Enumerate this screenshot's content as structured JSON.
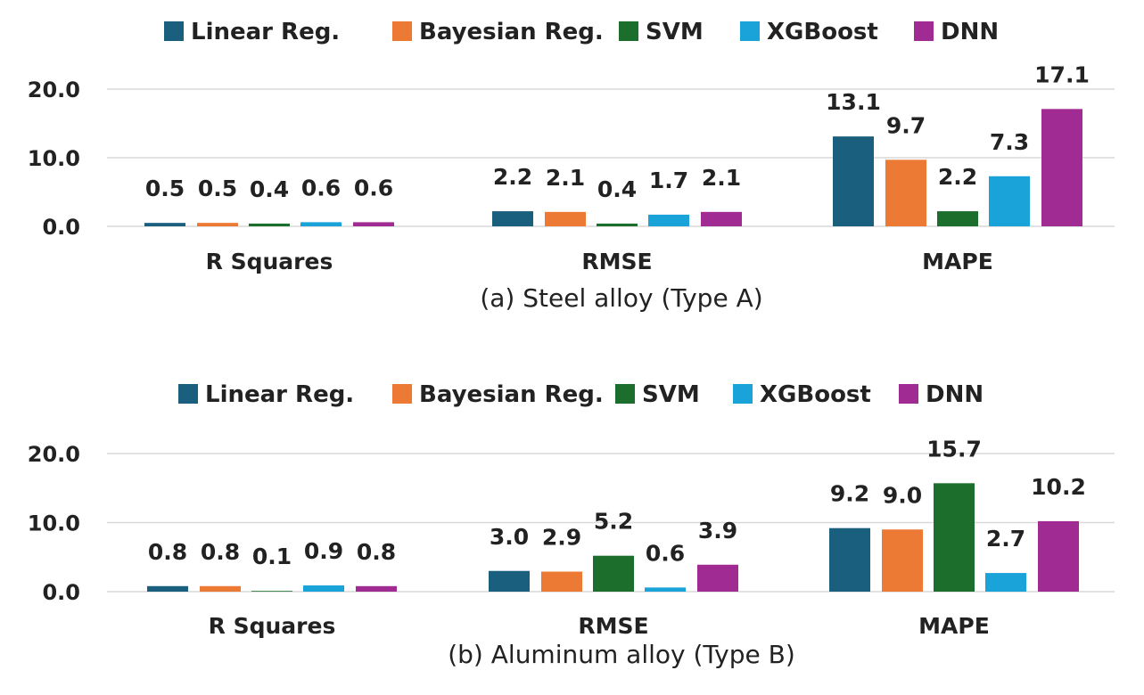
{
  "colors": {
    "Linear Reg.": "#1b5f7e",
    "Bayesian Reg.": "#ec7a35",
    "SVM": "#1c6e2c",
    "XGBoost": "#1aa3d9",
    "DNN": "#a02b93"
  },
  "chart_data": [
    {
      "type": "bar",
      "caption": "(a) Steel alloy (Type A)",
      "categories": [
        "R Squares",
        "RMSE",
        "MAPE"
      ],
      "series": [
        {
          "name": "Linear Reg.",
          "values": [
            0.5,
            2.2,
            13.1
          ]
        },
        {
          "name": "Bayesian Reg.",
          "values": [
            0.5,
            2.1,
            9.7
          ]
        },
        {
          "name": "SVM",
          "values": [
            0.4,
            0.4,
            2.2
          ]
        },
        {
          "name": "XGBoost",
          "values": [
            0.6,
            1.7,
            7.3
          ]
        },
        {
          "name": "DNN",
          "values": [
            0.6,
            2.1,
            17.1
          ]
        }
      ],
      "yticks": [
        "0.0",
        "10.0",
        "20.0"
      ],
      "ylim": [
        0,
        20
      ],
      "grid": true,
      "legend": "top"
    },
    {
      "type": "bar",
      "caption": "(b) Aluminum alloy (Type B)",
      "categories": [
        "R Squares",
        "RMSE",
        "MAPE"
      ],
      "series": [
        {
          "name": "Linear Reg.",
          "values": [
            0.8,
            3.0,
            9.2
          ]
        },
        {
          "name": "Bayesian Reg.",
          "values": [
            0.8,
            2.9,
            9.0
          ]
        },
        {
          "name": "SVM",
          "values": [
            0.1,
            5.2,
            15.7
          ]
        },
        {
          "name": "XGBoost",
          "values": [
            0.9,
            0.6,
            2.7
          ]
        },
        {
          "name": "DNN",
          "values": [
            0.8,
            3.9,
            10.2
          ]
        }
      ],
      "yticks": [
        "0.0",
        "10.0",
        "20.0"
      ],
      "ylim": [
        0,
        20
      ],
      "grid": true,
      "legend": "top"
    }
  ]
}
